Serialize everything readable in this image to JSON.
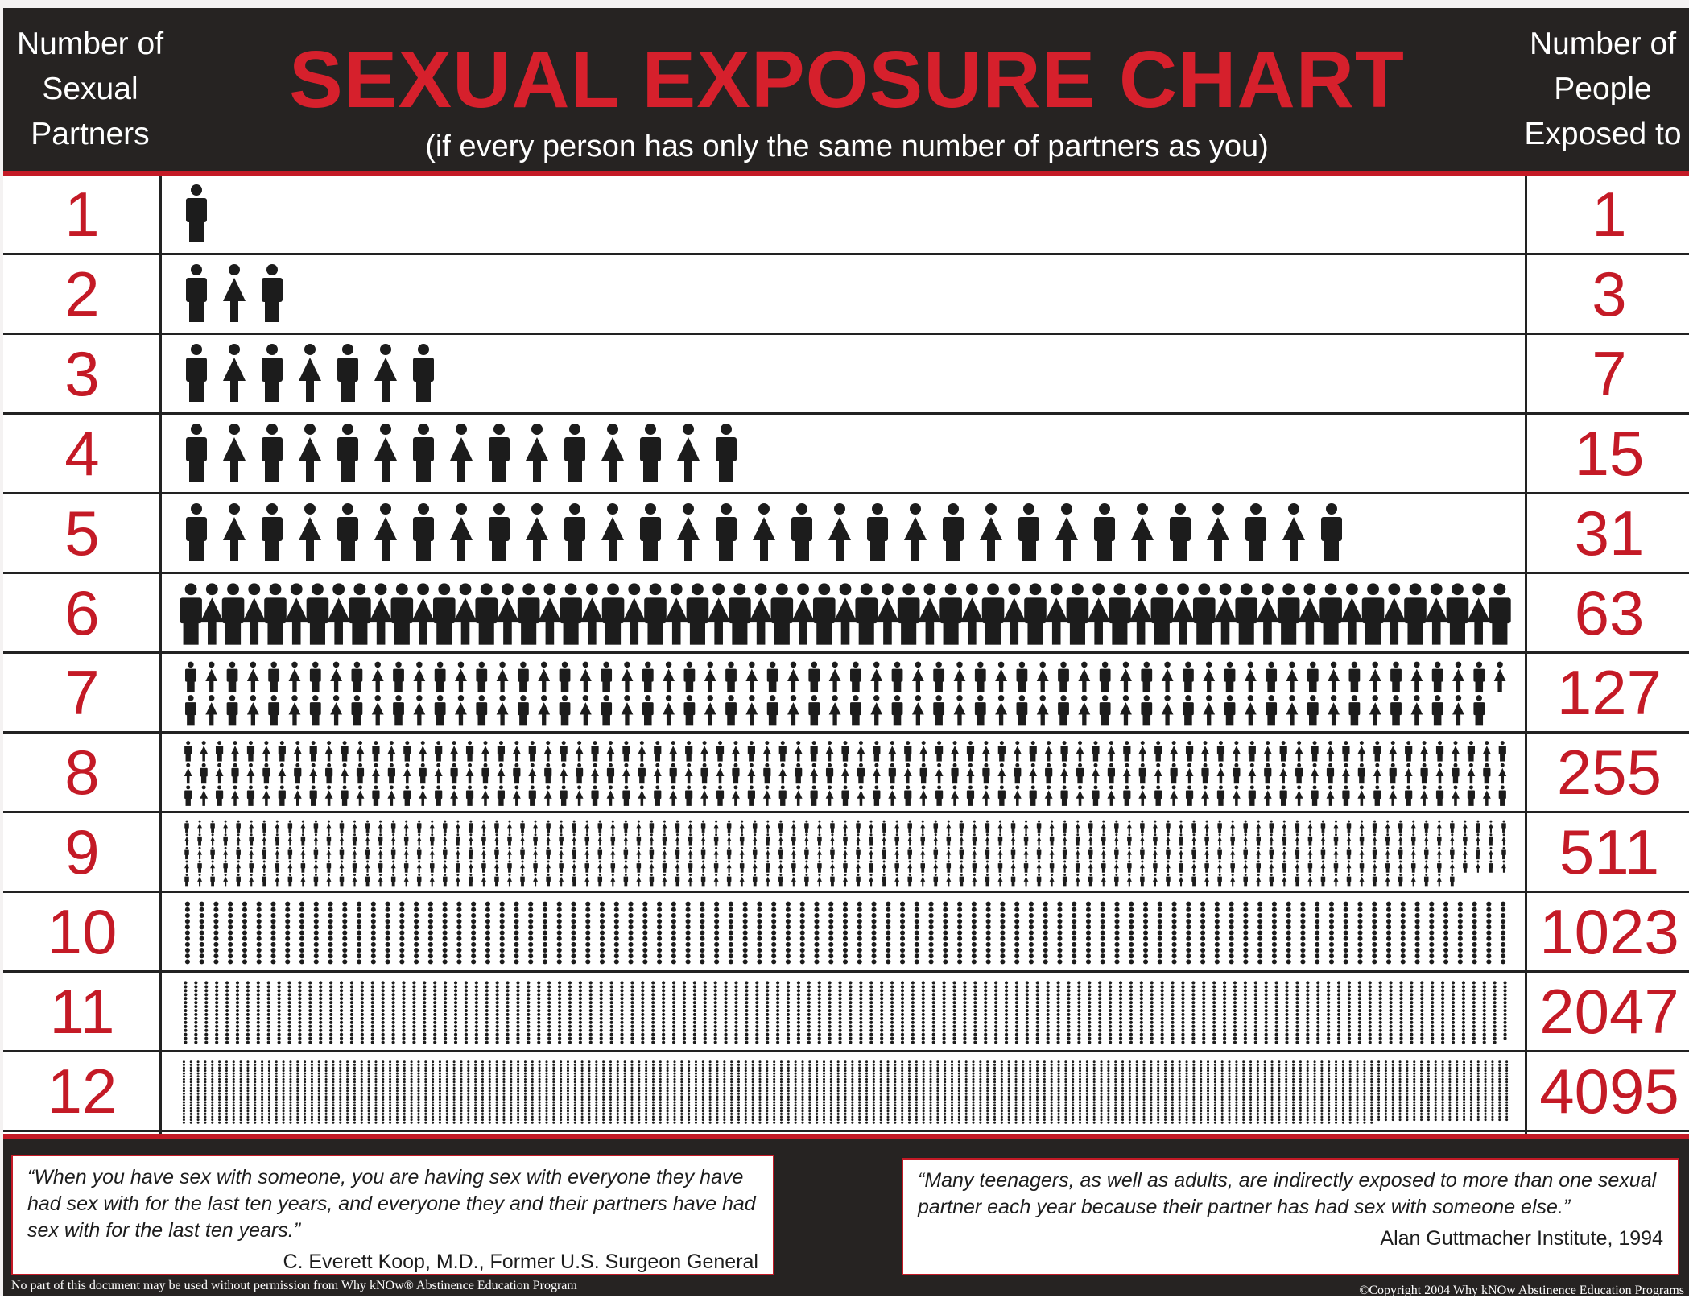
{
  "header": {
    "left_label": "Number of\nSexual\nPartners",
    "right_label": "Number of\nPeople\nExposed to"
  },
  "chart_data": {
    "type": "bar",
    "title": "SEXUAL EXPOSURE CHART",
    "subtitle": "(if every person has only the same number of partners as you)",
    "xlabel": "Number of Sexual Partners",
    "ylabel": "Number of People Exposed to",
    "categories": [
      "1",
      "2",
      "3",
      "4",
      "5",
      "6",
      "7",
      "8",
      "9",
      "10",
      "11",
      "12"
    ],
    "values": [
      1,
      3,
      7,
      15,
      31,
      63,
      127,
      255,
      511,
      1023,
      2047,
      4095
    ]
  },
  "quotes": [
    {
      "text": "“When you have sex with someone, you are having sex with everyone they have had sex with for the last ten years, and everyone they and their partners have had sex with for the last ten years.”",
      "source": "C. Everett Koop, M.D., Former U.S. Surgeon General"
    },
    {
      "text": "“Many teenagers, as well as adults, are indirectly exposed to more than one sexual partner each year because their partner has had sex with someone else.”",
      "source": "Alan Guttmacher Institute, 1994"
    }
  ],
  "footer": {
    "left_note": "No part of this document may be used without permission from Why kNOw® Abstinence Education Program",
    "right_note": "©Copyright 2004 Why kNOw Abstinence Education Programs"
  },
  "colors": {
    "accent_red": "#c41a26",
    "header_bg": "#262322",
    "figure": "#1c1c1c"
  }
}
